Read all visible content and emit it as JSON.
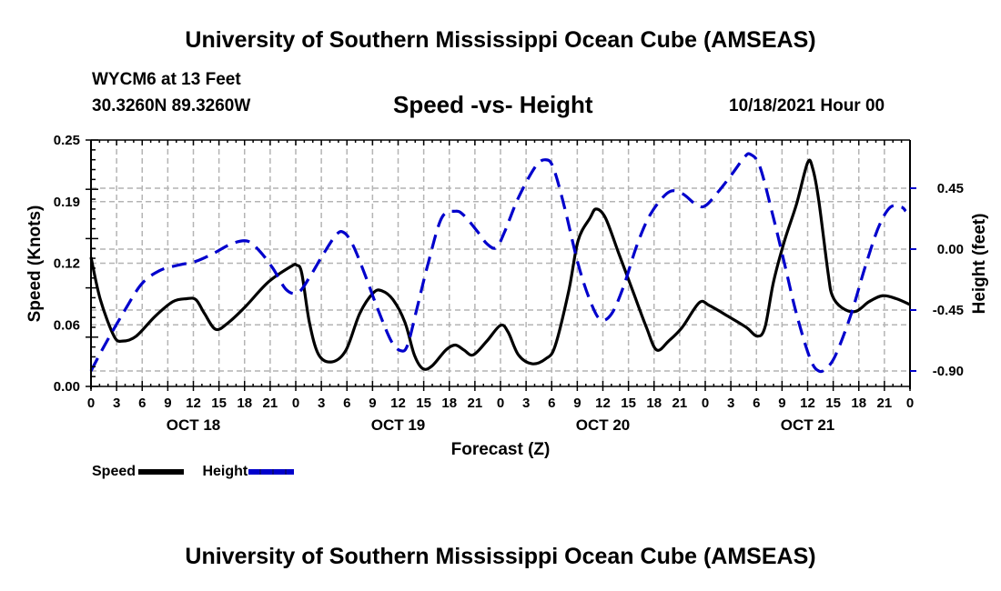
{
  "header": {
    "title": "University of Southern Mississippi Ocean Cube (AMSEAS)",
    "station": "WYCM6 at 13 Feet",
    "coordinates": "30.3260N  89.3260W",
    "subtitle": "Speed -vs- Height",
    "date": "10/18/2021 Hour 00"
  },
  "footer": {
    "title": "University of Southern Mississippi Ocean Cube (AMSEAS)"
  },
  "legend": {
    "items": [
      {
        "label": "Speed",
        "style": "solid",
        "color": "#000000"
      },
      {
        "label": "Height",
        "style": "dashed",
        "color": "#0000cc"
      }
    ]
  },
  "chart_data": {
    "type": "line",
    "title": "Speed -vs- Height",
    "xlabel": "Forecast (Z)",
    "ylabel": "Speed (Knots)",
    "y2label": "Height (feet)",
    "xlim": [
      0,
      96
    ],
    "ylim": [
      0,
      0.25
    ],
    "y2lim": [
      -1.0,
      1.82
    ],
    "grid": true,
    "legend_position": "bottom-left",
    "x_tick_labels": [
      "0",
      "3",
      "6",
      "9",
      "12",
      "15",
      "18",
      "21",
      "0",
      "3",
      "6",
      "9",
      "12",
      "15",
      "18",
      "21",
      "0",
      "3",
      "6",
      "9",
      "12",
      "15",
      "18",
      "21",
      "0",
      "3",
      "6",
      "9",
      "12",
      "15",
      "18",
      "21",
      "0"
    ],
    "day_labels": [
      {
        "label": "OCT 18",
        "hour": 12
      },
      {
        "label": "OCT 19",
        "hour": 36
      },
      {
        "label": "OCT 20",
        "hour": 60
      },
      {
        "label": "OCT 21",
        "hour": 84
      }
    ],
    "y_ticks": [
      "0.00",
      "0.06",
      "0.12",
      "0.19",
      "0.25"
    ],
    "y_tick_values": [
      0,
      0.0625,
      0.125,
      0.1875,
      0.25
    ],
    "y2_ticks": [
      "-0.90",
      "-0.45",
      "0.00",
      "0.45"
    ],
    "y2_tick_values": [
      -0.9,
      -0.45,
      0,
      0.45
    ],
    "series": [
      {
        "name": "Speed",
        "axis": "left",
        "color": "#000000",
        "style": "solid",
        "points": [
          [
            0,
            0.131
          ],
          [
            1.1,
            0.088
          ],
          [
            2.7,
            0.051
          ],
          [
            3.7,
            0.046
          ],
          [
            5.3,
            0.051
          ],
          [
            7.5,
            0.071
          ],
          [
            9.6,
            0.086
          ],
          [
            11.2,
            0.089
          ],
          [
            12.3,
            0.088
          ],
          [
            13.3,
            0.074
          ],
          [
            14.6,
            0.058
          ],
          [
            16,
            0.064
          ],
          [
            18.1,
            0.081
          ],
          [
            20.8,
            0.106
          ],
          [
            23.5,
            0.122
          ],
          [
            24.1,
            0.123
          ],
          [
            24.7,
            0.115
          ],
          [
            25.6,
            0.065
          ],
          [
            26.7,
            0.032
          ],
          [
            28.3,
            0.025
          ],
          [
            29.9,
            0.037
          ],
          [
            31.5,
            0.074
          ],
          [
            33.1,
            0.095
          ],
          [
            34.1,
            0.097
          ],
          [
            35.4,
            0.088
          ],
          [
            36.8,
            0.065
          ],
          [
            37.9,
            0.032
          ],
          [
            38.9,
            0.018
          ],
          [
            40,
            0.021
          ],
          [
            41.6,
            0.037
          ],
          [
            42.7,
            0.042
          ],
          [
            43.7,
            0.037
          ],
          [
            44.8,
            0.032
          ],
          [
            46.4,
            0.046
          ],
          [
            48,
            0.062
          ],
          [
            48.9,
            0.055
          ],
          [
            50.1,
            0.032
          ],
          [
            51.7,
            0.023
          ],
          [
            53.3,
            0.028
          ],
          [
            54.4,
            0.041
          ],
          [
            56,
            0.097
          ],
          [
            57.1,
            0.148
          ],
          [
            58.5,
            0.171
          ],
          [
            59.2,
            0.18
          ],
          [
            60.3,
            0.171
          ],
          [
            61.9,
            0.134
          ],
          [
            63.5,
            0.097
          ],
          [
            65.1,
            0.06
          ],
          [
            66.3,
            0.037
          ],
          [
            67.7,
            0.046
          ],
          [
            69.3,
            0.06
          ],
          [
            71.3,
            0.085
          ],
          [
            72.5,
            0.082
          ],
          [
            74.7,
            0.071
          ],
          [
            76.8,
            0.06
          ],
          [
            78.1,
            0.051
          ],
          [
            79,
            0.06
          ],
          [
            80,
            0.106
          ],
          [
            81.3,
            0.148
          ],
          [
            82.7,
            0.185
          ],
          [
            84,
            0.227
          ],
          [
            84.6,
            0.221
          ],
          [
            85.3,
            0.189
          ],
          [
            86.4,
            0.115
          ],
          [
            86.9,
            0.092
          ],
          [
            88,
            0.08
          ],
          [
            89.6,
            0.076
          ],
          [
            91.2,
            0.086
          ],
          [
            92.8,
            0.092
          ],
          [
            94.4,
            0.089
          ],
          [
            96,
            0.083
          ]
        ]
      },
      {
        "name": "Height",
        "axis": "right",
        "color": "#0000cc",
        "style": "dashed",
        "points": [
          [
            0,
            -0.9
          ],
          [
            1.6,
            -0.71
          ],
          [
            3.7,
            -0.48
          ],
          [
            5.9,
            -0.26
          ],
          [
            8,
            -0.16
          ],
          [
            10.1,
            -0.12
          ],
          [
            12.3,
            -0.09
          ],
          [
            14.4,
            -0.03
          ],
          [
            16.5,
            0.04
          ],
          [
            18.3,
            0.06
          ],
          [
            19.7,
            -0.01
          ],
          [
            21.3,
            -0.14
          ],
          [
            22.9,
            -0.3
          ],
          [
            24.3,
            -0.32
          ],
          [
            25.6,
            -0.21
          ],
          [
            27.2,
            -0.04
          ],
          [
            28.8,
            0.11
          ],
          [
            29.7,
            0.12
          ],
          [
            30.7,
            0.03
          ],
          [
            32,
            -0.17
          ],
          [
            33.6,
            -0.44
          ],
          [
            35.2,
            -0.68
          ],
          [
            36.3,
            -0.75
          ],
          [
            37.1,
            -0.71
          ],
          [
            38.2,
            -0.44
          ],
          [
            39.5,
            -0.11
          ],
          [
            41.1,
            0.23
          ],
          [
            42.7,
            0.28
          ],
          [
            43.7,
            0.25
          ],
          [
            45.3,
            0.13
          ],
          [
            46.4,
            0.04
          ],
          [
            47.5,
            0.01
          ],
          [
            48.5,
            0.13
          ],
          [
            50.1,
            0.38
          ],
          [
            52.1,
            0.61
          ],
          [
            53.3,
            0.66
          ],
          [
            54.2,
            0.6
          ],
          [
            55.5,
            0.31
          ],
          [
            57.1,
            -0.11
          ],
          [
            58.5,
            -0.38
          ],
          [
            59.7,
            -0.52
          ],
          [
            61,
            -0.48
          ],
          [
            62.4,
            -0.28
          ],
          [
            64,
            0.03
          ],
          [
            65.6,
            0.26
          ],
          [
            67.7,
            0.42
          ],
          [
            69.3,
            0.41
          ],
          [
            70.9,
            0.33
          ],
          [
            72,
            0.32
          ],
          [
            73.6,
            0.43
          ],
          [
            75.2,
            0.56
          ],
          [
            76.6,
            0.68
          ],
          [
            77.3,
            0.7
          ],
          [
            78.4,
            0.61
          ],
          [
            80,
            0.23
          ],
          [
            81.3,
            -0.11
          ],
          [
            82.7,
            -0.48
          ],
          [
            84.3,
            -0.81
          ],
          [
            85.3,
            -0.9
          ],
          [
            86.2,
            -0.88
          ],
          [
            87.3,
            -0.78
          ],
          [
            89.1,
            -0.48
          ],
          [
            90.7,
            -0.14
          ],
          [
            92.3,
            0.16
          ],
          [
            93.7,
            0.31
          ],
          [
            95,
            0.31
          ],
          [
            95.5,
            0.28
          ]
        ]
      }
    ]
  }
}
